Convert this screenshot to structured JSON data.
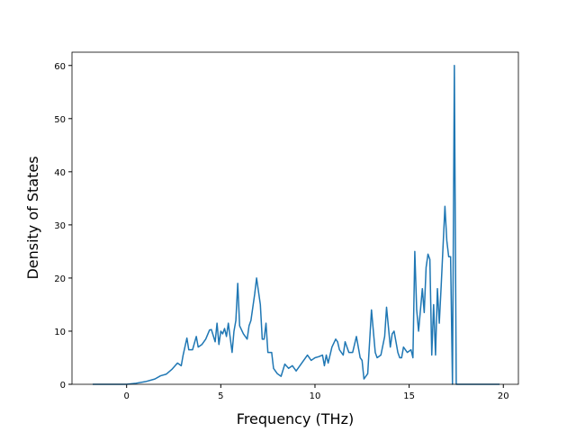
{
  "chart_data": {
    "type": "line",
    "x_label": "Frequency (THz)",
    "y_label": "Density of States",
    "xlim": [
      -2.9,
      20.8
    ],
    "ylim": [
      0,
      62.5
    ],
    "xticks": [
      0,
      5,
      10,
      15,
      20
    ],
    "yticks": [
      0,
      10,
      20,
      30,
      40,
      50,
      60
    ],
    "series": [
      {
        "color": "#1f77b4",
        "x": [
          -1.8,
          0,
          0.5,
          1,
          1.5,
          1.8,
          2.1,
          2.4,
          2.7,
          2.9,
          3.0,
          3.2,
          3.3,
          3.5,
          3.7,
          3.8,
          4.0,
          4.2,
          4.4,
          4.5,
          4.7,
          4.8,
          4.9,
          5.0,
          5.1,
          5.2,
          5.3,
          5.4,
          5.6,
          5.7,
          5.8,
          5.9,
          6.0,
          6.2,
          6.4,
          6.5,
          6.6,
          6.8,
          6.9,
          7.1,
          7.2,
          7.3,
          7.4,
          7.5,
          7.7,
          7.8,
          8.0,
          8.2,
          8.4,
          8.6,
          8.8,
          9.0,
          9.2,
          9.4,
          9.6,
          9.8,
          10.0,
          10.2,
          10.4,
          10.5,
          10.6,
          10.7,
          10.9,
          11.1,
          11.2,
          11.3,
          11.5,
          11.6,
          11.8,
          12.0,
          12.2,
          12.4,
          12.5,
          12.6,
          12.8,
          13.0,
          13.2,
          13.3,
          13.5,
          13.7,
          13.8,
          14.0,
          14.1,
          14.2,
          14.4,
          14.5,
          14.6,
          14.7,
          14.9,
          15.1,
          15.2,
          15.3,
          15.4,
          15.5,
          15.7,
          15.8,
          15.9,
          16.0,
          16.1,
          16.2,
          16.3,
          16.4,
          16.5,
          16.6,
          16.7,
          16.9,
          17.0,
          17.1,
          17.2,
          17.3,
          17.4,
          17.5,
          19.8
        ],
        "values": [
          0,
          0,
          0.2,
          0.5,
          1,
          1.6,
          1.9,
          2.8,
          4,
          3.5,
          5.5,
          8.7,
          6.5,
          6.5,
          9,
          7,
          7.5,
          8.5,
          10.2,
          10.3,
          8,
          11.5,
          7.5,
          10,
          9.5,
          10.5,
          9,
          11.5,
          6,
          10,
          12,
          19,
          11,
          9.5,
          8.5,
          11,
          12,
          17,
          20,
          15,
          8.5,
          8.5,
          11.5,
          6,
          6,
          3,
          2,
          1.5,
          3.8,
          3,
          3.5,
          2.5,
          3.5,
          4.5,
          5.5,
          4.5,
          5,
          5.2,
          5.5,
          3.5,
          5.5,
          4,
          7,
          8.5,
          8,
          6.5,
          5.5,
          8,
          6,
          6,
          9,
          5,
          4.5,
          1,
          2,
          14,
          6,
          5,
          5.5,
          9,
          14.5,
          7,
          9.5,
          10,
          6,
          5,
          5,
          7,
          6,
          6.5,
          5,
          25,
          14,
          10,
          18,
          13.5,
          22,
          24.5,
          23.5,
          5.5,
          15,
          5.5,
          18,
          11.5,
          18.5,
          33.5,
          27,
          24,
          24,
          0,
          60,
          0,
          0
        ]
      }
    ]
  }
}
